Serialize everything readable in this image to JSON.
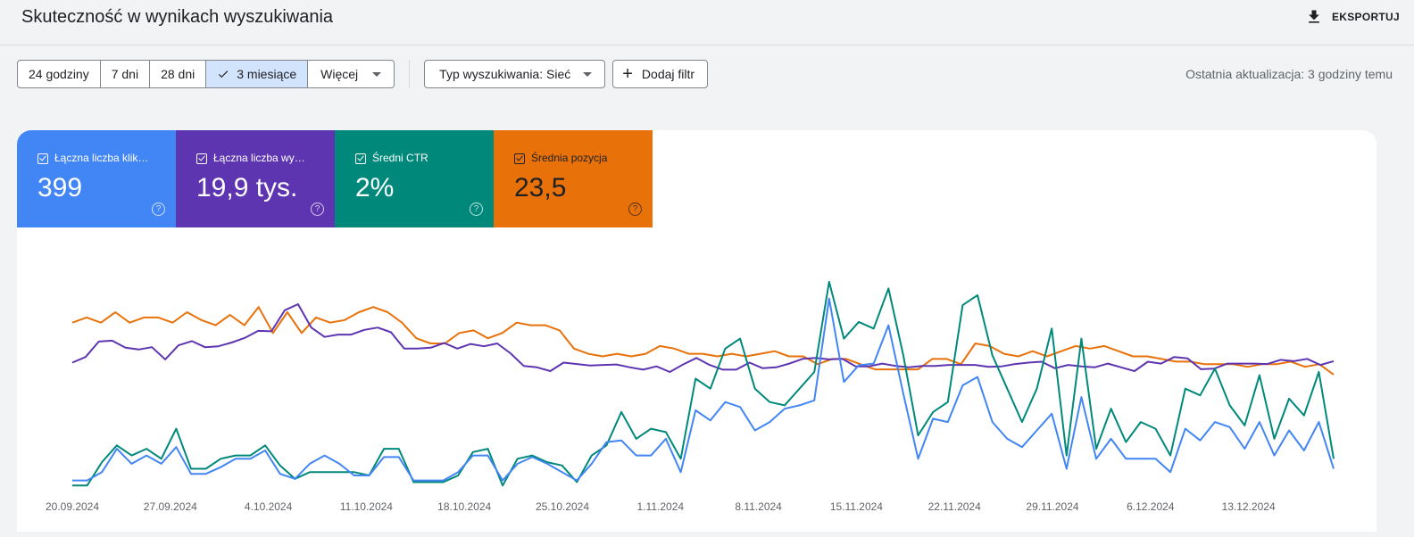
{
  "header": {
    "title": "Skuteczność w wynikach wyszukiwania",
    "export_label": "EKSPORTUJ"
  },
  "toolbar": {
    "ranges": [
      "24 godziny",
      "7 dni",
      "28 dni",
      "3 miesiące"
    ],
    "selected_range": "3 miesiące",
    "more_label": "Więcej",
    "search_type_label": "Typ wyszukiwania: Sieć",
    "add_filter_label": "Dodaj filtr",
    "last_updated": "Ostatnia aktualizacja: 3 godziny temu"
  },
  "metrics": [
    {
      "label": "Łączna liczba kliknięć",
      "display_label": "Łączna liczba klik…",
      "value": "399",
      "color": "#4285f4",
      "checked": true
    },
    {
      "label": "Łączna liczba wyświetleń",
      "display_label": "Łączna liczba wy…",
      "value": "19,9 tys.",
      "color": "#5e35b1",
      "checked": true
    },
    {
      "label": "Średni CTR",
      "display_label": "Średni CTR",
      "value": "2%",
      "color": "#00897b",
      "checked": true
    },
    {
      "label": "Średnia pozycja",
      "display_label": "Średnia pozycja",
      "value": "23,5",
      "color": "#e8710a",
      "checked": true
    }
  ],
  "chart_data": {
    "type": "line",
    "x_start": "20.09.2024",
    "x_tick_labels": [
      "20.09.2024",
      "27.09.2024",
      "4.10.2024",
      "11.10.2024",
      "18.10.2024",
      "25.10.2024",
      "1.11.2024",
      "8.11.2024",
      "15.11.2024",
      "22.11.2024",
      "29.11.2024",
      "6.12.2024",
      "13.12.2024"
    ],
    "y_axis_visible": false,
    "grid": false,
    "series": [
      {
        "name": "Łączna liczba kliknięć",
        "color": "#4285f4",
        "values": [
          0.5,
          0.5,
          1.0,
          2.4,
          1.5,
          2.0,
          1.5,
          2.5,
          0.9,
          0.9,
          1.3,
          1.8,
          1.8,
          2.3,
          0.9,
          0.6,
          1.5,
          2.0,
          1.5,
          0.8,
          0.8,
          1.9,
          1.9,
          0.5,
          0.5,
          0.5,
          1.0,
          2.0,
          2.0,
          0.5,
          1.5,
          1.9,
          1.5,
          1.0,
          0.5,
          1.5,
          2.8,
          2.9,
          2.0,
          2.0,
          3.0,
          1.0,
          4.7,
          4.1,
          5.2,
          4.9,
          3.5,
          4.0,
          4.8,
          5.0,
          5.3,
          11.4,
          6.4,
          7.4,
          7.5,
          9.8,
          5.7,
          1.8,
          4.2,
          4.0,
          6.2,
          6.7,
          4.0,
          3.0,
          2.5,
          3.5,
          4.5,
          1.2,
          5.5,
          1.8,
          3.0,
          1.8,
          1.8,
          1.8,
          1.0,
          3.6,
          2.9,
          4.0,
          3.7,
          2.4,
          4.0,
          2.0,
          3.5,
          2.3,
          4.0,
          1.2
        ],
        "value_min": 0,
        "value_max": 14
      },
      {
        "name": "Łączna liczba wyświetleń",
        "color": "#5e35b1",
        "values": [
          270,
          282,
          315,
          317,
          302,
          298,
          303,
          277,
          307,
          316,
          303,
          305,
          313,
          323,
          338,
          337,
          382,
          395,
          345,
          325,
          330,
          330,
          340,
          345,
          335,
          300,
          300,
          302,
          312,
          300,
          310,
          305,
          311,
          290,
          263,
          260,
          252,
          270,
          267,
          264,
          265,
          266,
          260,
          255,
          262,
          250,
          266,
          280,
          265,
          255,
          255,
          270,
          258,
          260,
          268,
          278,
          280,
          277,
          278,
          262,
          262,
          268,
          263,
          260,
          263,
          263,
          265,
          265,
          265,
          261,
          262,
          267,
          270,
          272,
          258,
          265,
          262,
          260,
          268,
          260,
          252,
          272,
          268,
          282,
          279,
          256,
          257,
          268,
          268,
          268,
          267,
          276,
          273,
          278,
          265,
          273
        ],
        "value_min": 0,
        "value_max": 500
      },
      {
        "name": "Średni CTR",
        "color": "#00897b",
        "values": [
          0.1,
          0.1,
          0.8,
          1.3,
          1.0,
          1.2,
          0.9,
          1.8,
          0.6,
          0.6,
          0.9,
          1.0,
          1.0,
          1.3,
          0.7,
          0.3,
          0.5,
          0.5,
          0.5,
          0.5,
          0.4,
          1.2,
          1.2,
          0.2,
          0.2,
          0.2,
          0.4,
          1.1,
          1.2,
          0.1,
          0.9,
          1.0,
          0.8,
          0.7,
          0.2,
          1.0,
          1.3,
          2.3,
          1.5,
          1.8,
          1.7,
          0.9,
          3.3,
          3.0,
          4.2,
          4.5,
          3.0,
          2.6,
          2.5,
          3.0,
          3.5,
          6.2,
          4.5,
          5.0,
          4.8,
          6.0,
          4.0,
          1.6,
          2.3,
          2.6,
          5.5,
          5.8,
          4.0,
          3.0,
          2.0,
          3.0,
          4.8,
          1.0,
          4.5,
          1.2,
          2.4,
          1.4,
          2.0,
          1.8,
          1.0,
          3.0,
          2.8,
          3.6,
          2.5,
          1.9,
          3.4,
          1.5,
          2.7,
          2.2,
          3.5,
          0.9
        ],
        "value_min": 0,
        "value_max": 7
      },
      {
        "name": "Średnia pozycja",
        "color": "#e8710a",
        "values": [
          32,
          33,
          32,
          34,
          32,
          33,
          33,
          32,
          34,
          32.5,
          31.5,
          33.5,
          31.5,
          35,
          30,
          34,
          30,
          33,
          32,
          32.5,
          34,
          35,
          34,
          32,
          29,
          28,
          28,
          30,
          30.5,
          29,
          30,
          32,
          31.5,
          31.5,
          30.5,
          27,
          26,
          25.5,
          26,
          25.5,
          26,
          27.5,
          27,
          26,
          26,
          25.5,
          26,
          25.5,
          26,
          26.5,
          25.5,
          25.5,
          24,
          25,
          25,
          24,
          23,
          23,
          23,
          23,
          25,
          25,
          24,
          28,
          27.5,
          26,
          25.5,
          26.5,
          25.5,
          26.5,
          27.5,
          27,
          27.5,
          26.5,
          25.5,
          25.5,
          25,
          24.5,
          24.5,
          24,
          24,
          24,
          23.5,
          24,
          24,
          24.5,
          23.5,
          24,
          22
        ],
        "value_min": 0,
        "value_max": 45
      }
    ]
  }
}
